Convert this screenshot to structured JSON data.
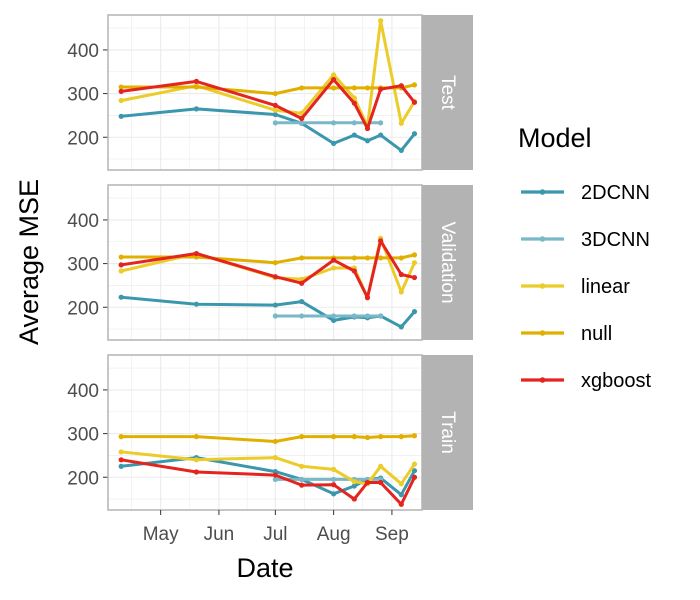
{
  "chart_data": {
    "type": "line",
    "xlabel": "Date",
    "ylabel": "Average MSE",
    "x_tick_labels": [
      "May",
      "Jun",
      "Jul",
      "Aug",
      "Sep"
    ],
    "x_ticks": [
      "2021-05-01",
      "2021-06-01",
      "2021-07-01",
      "2021-08-01",
      "2021-09-01"
    ],
    "xlim": [
      "2021-04-03",
      "2021-09-17"
    ],
    "y_ticks": [
      200,
      300,
      400
    ],
    "ylim": [
      125,
      480
    ],
    "grid": true,
    "legend": {
      "title": "Model",
      "position": "right",
      "entries": [
        "2DCNN",
        "3DCNN",
        "linear",
        "null",
        "xgboost"
      ]
    },
    "colors": {
      "2DCNN": "#3a97ad",
      "3DCNN": "#7ab8c8",
      "linear": "#ebcc2a",
      "null": "#e1af00",
      "xgboost": "#e3241f",
      "panel_border": "#b3b3b3",
      "strip": "#b3b3b3",
      "grid": "#ebebeb"
    },
    "panels": [
      {
        "label": "Test",
        "series": [
          {
            "name": "2DCNN",
            "x": [
              "2021-04-10",
              "2021-05-20",
              "2021-07-01",
              "2021-07-15",
              "2021-08-01",
              "2021-08-12",
              "2021-08-19",
              "2021-08-26",
              "2021-09-06",
              "2021-09-13"
            ],
            "y": [
              248,
              265,
              252,
              232,
              186,
              205,
              192,
              205,
              170,
              208
            ]
          },
          {
            "name": "3DCNN",
            "x": [
              "2021-07-01",
              "2021-07-15",
              "2021-08-01",
              "2021-08-12",
              "2021-08-19",
              "2021-08-26"
            ],
            "y": [
              233,
              233,
              233,
              233,
              233,
              233
            ]
          },
          {
            "name": "linear",
            "x": [
              "2021-04-10",
              "2021-05-20",
              "2021-07-01",
              "2021-07-15",
              "2021-08-01",
              "2021-08-12",
              "2021-08-19",
              "2021-08-26",
              "2021-09-06",
              "2021-09-13"
            ],
            "y": [
              284,
              318,
              262,
              255,
              343,
              290,
              225,
              467,
              232,
              282
            ]
          },
          {
            "name": "null",
            "x": [
              "2021-04-10",
              "2021-05-20",
              "2021-07-01",
              "2021-07-15",
              "2021-08-01",
              "2021-08-12",
              "2021-08-19",
              "2021-08-26",
              "2021-09-06",
              "2021-09-13"
            ],
            "y": [
              315,
              315,
              300,
              313,
              313,
              313,
              313,
              313,
              313,
              320
            ]
          },
          {
            "name": "xgboost",
            "x": [
              "2021-04-10",
              "2021-05-20",
              "2021-07-01",
              "2021-07-15",
              "2021-08-01",
              "2021-08-12",
              "2021-08-19",
              "2021-08-26",
              "2021-09-06",
              "2021-09-13"
            ],
            "y": [
              305,
              328,
              273,
              243,
              332,
              278,
              220,
              310,
              318,
              280
            ]
          }
        ]
      },
      {
        "label": "Validation",
        "series": [
          {
            "name": "2DCNN",
            "x": [
              "2021-04-10",
              "2021-05-20",
              "2021-07-01",
              "2021-07-15",
              "2021-08-01",
              "2021-08-12",
              "2021-08-19",
              "2021-08-26",
              "2021-09-06",
              "2021-09-13"
            ],
            "y": [
              223,
              207,
              205,
              213,
              170,
              178,
              176,
              180,
              155,
              190
            ]
          },
          {
            "name": "3DCNN",
            "x": [
              "2021-07-01",
              "2021-07-15",
              "2021-08-01",
              "2021-08-12",
              "2021-08-19",
              "2021-08-26"
            ],
            "y": [
              180,
              180,
              180,
              180,
              180,
              180
            ]
          },
          {
            "name": "linear",
            "x": [
              "2021-04-10",
              "2021-05-20",
              "2021-07-01",
              "2021-07-15",
              "2021-08-01",
              "2021-08-12",
              "2021-08-19",
              "2021-08-26",
              "2021-09-06",
              "2021-09-13"
            ],
            "y": [
              283,
              323,
              268,
              264,
              290,
              290,
              222,
              358,
              235,
              302
            ]
          },
          {
            "name": "null",
            "x": [
              "2021-04-10",
              "2021-05-20",
              "2021-07-01",
              "2021-07-15",
              "2021-08-01",
              "2021-08-12",
              "2021-08-19",
              "2021-08-26",
              "2021-09-06",
              "2021-09-13"
            ],
            "y": [
              315,
              315,
              302,
              313,
              313,
              313,
              313,
              313,
              313,
              320
            ]
          },
          {
            "name": "xgboost",
            "x": [
              "2021-04-10",
              "2021-05-20",
              "2021-07-01",
              "2021-07-15",
              "2021-08-01",
              "2021-08-12",
              "2021-08-19",
              "2021-08-26",
              "2021-09-06",
              "2021-09-13"
            ],
            "y": [
              297,
              323,
              270,
              255,
              308,
              283,
              222,
              352,
              275,
              268
            ]
          }
        ]
      },
      {
        "label": "Train",
        "series": [
          {
            "name": "2DCNN",
            "x": [
              "2021-04-10",
              "2021-05-20",
              "2021-07-01",
              "2021-07-15",
              "2021-08-01",
              "2021-08-12",
              "2021-08-19",
              "2021-08-26",
              "2021-09-06",
              "2021-09-13"
            ],
            "y": [
              225,
              245,
              213,
              195,
              162,
              180,
              195,
              198,
              160,
              215
            ]
          },
          {
            "name": "3DCNN",
            "x": [
              "2021-07-01",
              "2021-07-15",
              "2021-08-01",
              "2021-08-12",
              "2021-08-19",
              "2021-08-26"
            ],
            "y": [
              195,
              195,
              195,
              195,
              195,
              195
            ]
          },
          {
            "name": "linear",
            "x": [
              "2021-04-10",
              "2021-05-20",
              "2021-07-01",
              "2021-07-15",
              "2021-08-01",
              "2021-08-12",
              "2021-08-19",
              "2021-08-26",
              "2021-09-06",
              "2021-09-13"
            ],
            "y": [
              258,
              240,
              245,
              225,
              218,
              190,
              185,
              225,
              185,
              230
            ]
          },
          {
            "name": "null",
            "x": [
              "2021-04-10",
              "2021-05-20",
              "2021-07-01",
              "2021-07-15",
              "2021-08-01",
              "2021-08-12",
              "2021-08-19",
              "2021-08-26",
              "2021-09-06",
              "2021-09-13"
            ],
            "y": [
              293,
              293,
              282,
              293,
              293,
              293,
              291,
              293,
              293,
              295
            ]
          },
          {
            "name": "xgboost",
            "x": [
              "2021-04-10",
              "2021-05-20",
              "2021-07-01",
              "2021-07-15",
              "2021-08-01",
              "2021-08-12",
              "2021-08-19",
              "2021-08-26",
              "2021-09-06",
              "2021-09-13"
            ],
            "y": [
              240,
              212,
              205,
              182,
              183,
              150,
              188,
              188,
              138,
              200
            ]
          }
        ]
      }
    ]
  }
}
